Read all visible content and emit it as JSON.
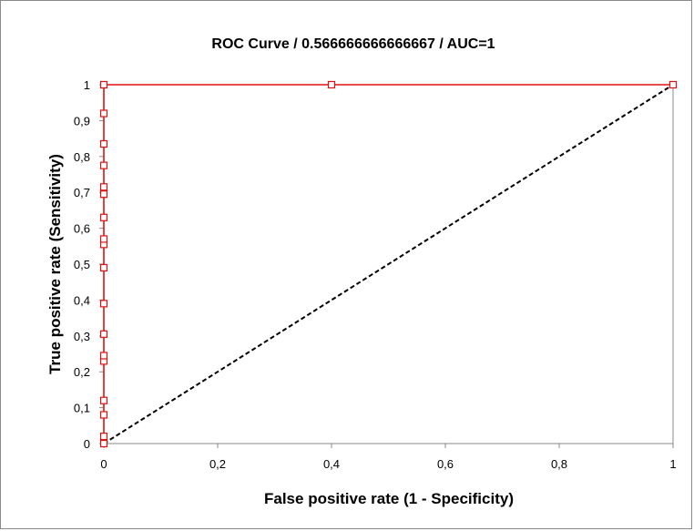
{
  "chart_data": {
    "type": "line",
    "title": "ROC Curve / 0.566666666666667 / AUC=1",
    "xlabel": "False positive rate (1 - Specificity)",
    "ylabel": "True positive rate (Sensitivity)",
    "xlim": [
      0,
      1
    ],
    "ylim": [
      0,
      1
    ],
    "xticks": [
      "0",
      "0,2",
      "0,4",
      "0,6",
      "0,8",
      "1"
    ],
    "yticks": [
      "0",
      "0,1",
      "0,2",
      "0,3",
      "0,4",
      "0,5",
      "0,6",
      "0,7",
      "0,8",
      "0,9",
      "1"
    ],
    "grid": false,
    "legend": "none",
    "series": [
      {
        "color": "#e01010",
        "marker": "square",
        "points": [
          [
            0,
            0
          ],
          [
            0,
            0.02
          ],
          [
            0,
            0.08
          ],
          [
            0,
            0.12
          ],
          [
            0,
            0.23
          ],
          [
            0,
            0.245
          ],
          [
            0,
            0.305
          ],
          [
            0,
            0.39
          ],
          [
            0,
            0.49
          ],
          [
            0,
            0.555
          ],
          [
            0,
            0.57
          ],
          [
            0,
            0.63
          ],
          [
            0,
            0.695
          ],
          [
            0,
            0.715
          ],
          [
            0,
            0.775
          ],
          [
            0,
            0.835
          ],
          [
            0,
            0.92
          ],
          [
            0,
            1
          ],
          [
            0.4,
            1
          ],
          [
            1,
            1
          ]
        ]
      },
      {
        "color": "#000000",
        "style": "dashed",
        "points": [
          [
            0,
            0
          ],
          [
            1,
            1
          ]
        ]
      }
    ]
  }
}
